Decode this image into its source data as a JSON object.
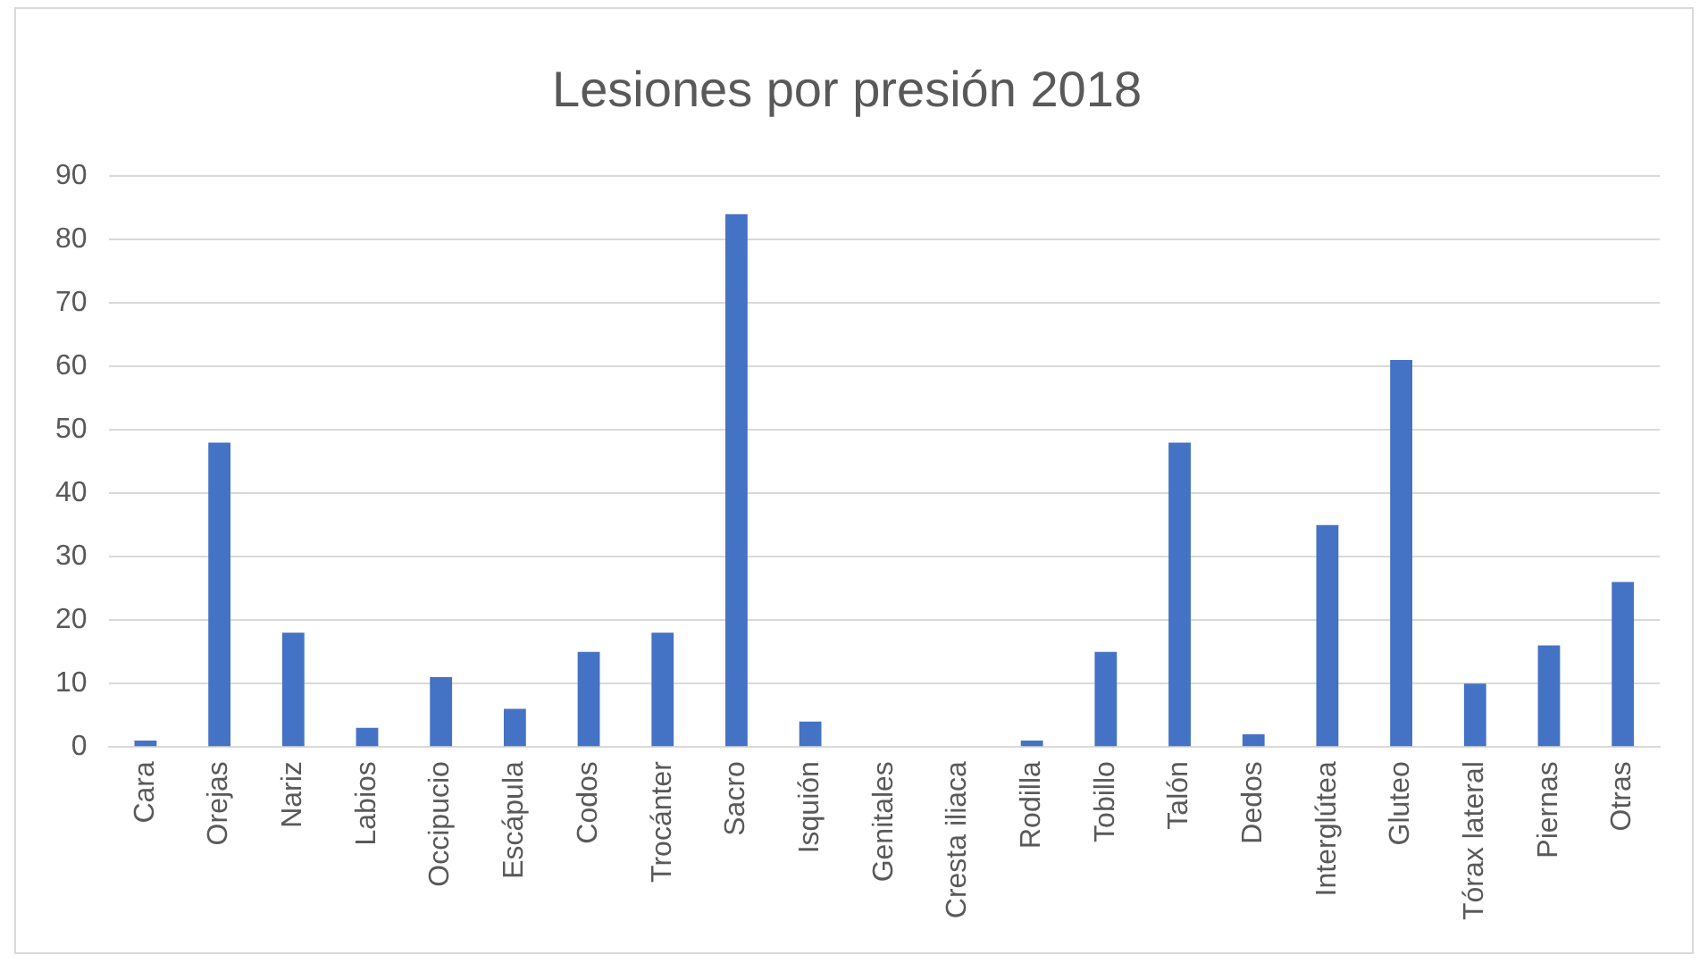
{
  "chart_data": {
    "type": "bar",
    "title": "Lesiones por presión 2018",
    "categories": [
      "Cara",
      "Orejas",
      "Nariz",
      "Labios",
      "Occipucio",
      "Escápula",
      "Codos",
      "Trocánter",
      "Sacro",
      "Isquión",
      "Genitales",
      "Cresta iliaca",
      "Rodilla",
      "Tobillo",
      "Talón",
      "Dedos",
      "Interglútea",
      "Gluteo",
      "Tórax lateral",
      "Piernas",
      "Otras"
    ],
    "values": [
      1,
      48,
      18,
      3,
      11,
      6,
      15,
      18,
      84,
      4,
      0,
      0,
      1,
      15,
      48,
      2,
      35,
      61,
      10,
      16,
      26
    ],
    "color": "#4472c4",
    "ylim": [
      0,
      90
    ],
    "yticks": [
      0,
      10,
      20,
      30,
      40,
      50,
      60,
      70,
      80,
      90
    ],
    "grid": "y",
    "legend": false
  }
}
